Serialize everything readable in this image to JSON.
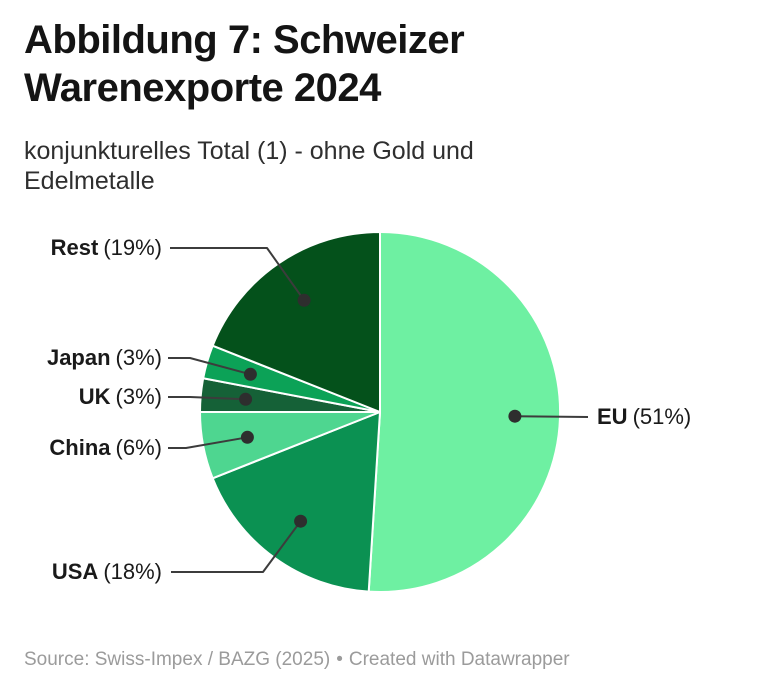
{
  "header": {
    "title": "Abbildung 7: Schweizer Warenexporte 2024",
    "subtitle": "konjunkturelles Total (1) - ohne Gold und Edelmetalle"
  },
  "chart_data": {
    "type": "pie",
    "title": "Abbildung 7: Schweizer Warenexporte 2024",
    "subtitle": "konjunkturelles Total (1) - ohne Gold und Edelmetalle",
    "unit": "%",
    "direction": "clockwise",
    "start_angle_deg": 0,
    "legend_position": "outside-callout-labels",
    "categories": [
      "EU",
      "USA",
      "China",
      "UK",
      "Japan",
      "Rest"
    ],
    "values": [
      51,
      18,
      6,
      3,
      3,
      19
    ],
    "slices": [
      {
        "name": "EU",
        "value": 51,
        "pct_text": "(51%)",
        "color": "#6ef0a2"
      },
      {
        "name": "USA",
        "value": 18,
        "pct_text": "(18%)",
        "color": "#0b9152"
      },
      {
        "name": "China",
        "value": 6,
        "pct_text": "(6%)",
        "color": "#4ed690"
      },
      {
        "name": "UK",
        "value": 3,
        "pct_text": "(3%)",
        "color": "#156137"
      },
      {
        "name": "Japan",
        "value": 3,
        "pct_text": "(3%)",
        "color": "#0ca257"
      },
      {
        "name": "Rest",
        "value": 19,
        "pct_text": "(19%)",
        "color": "#04511b"
      }
    ]
  },
  "footer": {
    "source": "Source: Swiss-Impex / BAZG (2025)",
    "separator": "•",
    "attribution": "Created with Datawrapper"
  },
  "colors": {
    "background": "#ffffff",
    "title_text": "#141414",
    "subtitle_text": "#2f2f2f",
    "label_text": "#1a1a1a",
    "footer_text": "#9b9b9b",
    "connector_line": "#3c3c3c",
    "anchor_dot": "#2e2e2e",
    "slice_border": "#ffffff"
  }
}
